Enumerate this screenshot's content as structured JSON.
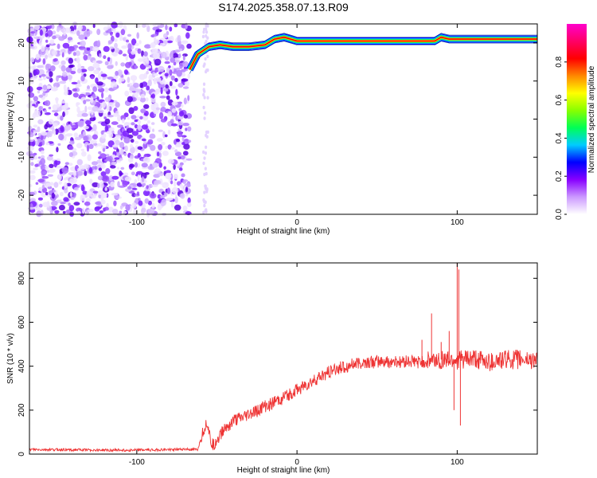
{
  "title": "S174.2025.358.07.13.R09",
  "chart_data": [
    {
      "type": "heatmap",
      "xlabel": "Height of straight line (km)",
      "ylabel": "Frequency (Hz)",
      "xlim": [
        -167,
        150
      ],
      "ylim": [
        -25,
        25
      ],
      "x_ticks": [
        -100,
        0,
        100
      ],
      "y_ticks": [
        -20,
        -10,
        0,
        10,
        20
      ],
      "colorbar": {
        "label": "Normalized spectral amplitude",
        "range": [
          0,
          1
        ],
        "ticks": [
          "0.0",
          "0.2",
          "0.4",
          "0.6",
          "0.8"
        ],
        "colors": [
          "#ffffff",
          "#cc99ff",
          "#8800ff",
          "#0000ff",
          "#00ccff",
          "#00ff55",
          "#88ff00",
          "#ffff00",
          "#ff8800",
          "#ff0000",
          "#ff0066",
          "#ff00cc"
        ]
      },
      "noise_region_x": [
        -167,
        -67
      ],
      "sparse_column_x": -57,
      "signal_trace": {
        "x": [
          -67,
          -62,
          -55,
          -48,
          -40,
          -30,
          -20,
          -14,
          -8,
          -4,
          0,
          10,
          25,
          40,
          55,
          65,
          72,
          78,
          82,
          86,
          90,
          95,
          100,
          110,
          120,
          130,
          140,
          150
        ],
        "y": [
          13,
          17,
          19,
          19.5,
          19,
          19,
          19.5,
          21,
          21.5,
          21,
          20.5,
          20.5,
          20.5,
          20.5,
          20.5,
          20.5,
          20.5,
          20.5,
          20.5,
          20.5,
          21.5,
          21,
          21,
          21,
          21,
          21,
          21,
          21
        ]
      }
    },
    {
      "type": "line",
      "xlabel": "Height of straight line (km)",
      "ylabel": "SNR (10 * v/v)",
      "xlim": [
        -167,
        150
      ],
      "ylim": [
        0,
        870
      ],
      "x_ticks": [
        -100,
        0,
        100
      ],
      "y_ticks": [
        0,
        200,
        400,
        600,
        800
      ],
      "series": [
        {
          "color": "#ee3333",
          "x": [
            -167,
            -150,
            -120,
            -100,
            -80,
            -70,
            -62,
            -58,
            -56,
            -54,
            -52,
            -50,
            -45,
            -40,
            -35,
            -30,
            -20,
            -10,
            0,
            10,
            20,
            30,
            40,
            50,
            60,
            70,
            80,
            90,
            95,
            100,
            105,
            110,
            120,
            130,
            140,
            150
          ],
          "y": [
            20,
            20,
            18,
            18,
            20,
            22,
            20,
            120,
            150,
            60,
            40,
            70,
            120,
            150,
            160,
            180,
            215,
            250,
            290,
            330,
            375,
            400,
            415,
            420,
            420,
            420,
            420,
            430,
            430,
            430,
            430,
            430,
            420,
            430,
            430,
            430
          ]
        }
      ],
      "spikes": [
        {
          "x": 78,
          "y": 520
        },
        {
          "x": 84,
          "y": 640
        },
        {
          "x": 90,
          "y": 510
        },
        {
          "x": 95,
          "y": 560
        },
        {
          "x": 100,
          "y": 870
        },
        {
          "x": 101,
          "y": 840
        },
        {
          "x": 102,
          "y": 130
        },
        {
          "x": 98,
          "y": 200
        }
      ]
    }
  ]
}
